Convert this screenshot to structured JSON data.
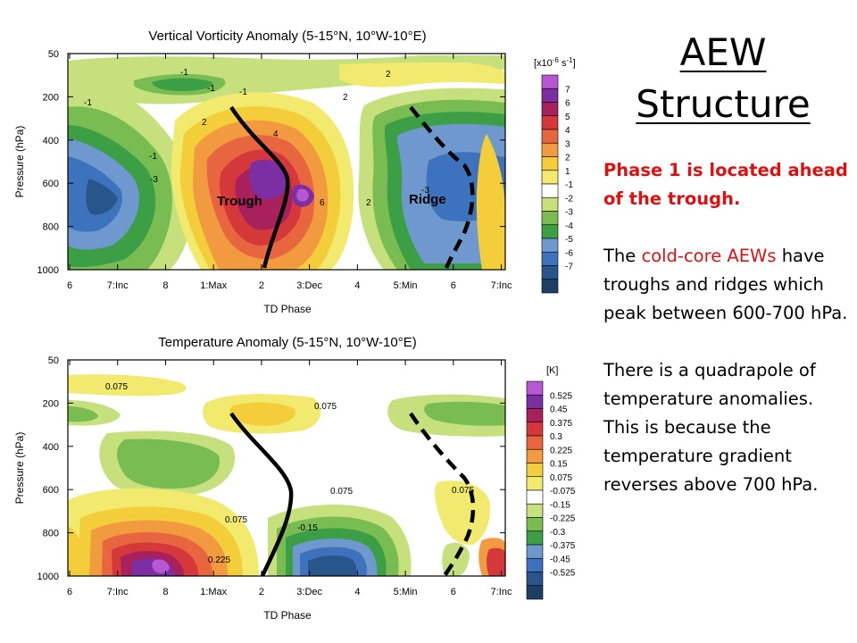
{
  "slide": {
    "title_line1": "AEW",
    "title_line2": "Structure",
    "note1": "Phase 1 is located ahead of the trough.",
    "note2_pre": "The ",
    "note2_red": "cold-core AEWs",
    "note2_post": " have troughs and ridges which peak between 600-700 hPa.",
    "note3": "There is a quadrapole of temperature anomalies. This is because the temperature gradient reverses above 700 hPa."
  },
  "colors": {
    "note_red": "#e01010",
    "line": "#000000"
  },
  "chart_data": [
    {
      "type": "heatmap",
      "title": "Vertical Vorticity Anomaly (5-15°N, 10°W-10°E)",
      "xlabel": "TD Phase",
      "ylabel": "Pressure (hPa)",
      "x_ticks": [
        "6",
        "7:Inc",
        "8",
        "1:Max",
        "2",
        "3:Dec",
        "4",
        "5:Min",
        "6",
        "7:Inc"
      ],
      "y_ticks": [
        "50",
        "200",
        "400",
        "600",
        "800",
        "1000"
      ],
      "ylim": [
        1000,
        50
      ],
      "colorbar_unit": "[x10",
      "colorbar_unit_exp": "-6",
      "colorbar_unit_tail": " s",
      "colorbar_unit_exp2": "-1",
      "colorbar_unit_close": "]",
      "colorbar_labels": [
        "7",
        "6",
        "5",
        "4",
        "3",
        "2",
        "1",
        "-1",
        "-2",
        "-3",
        "-4",
        "-5",
        "-6",
        "-7"
      ],
      "colorbar_colors": [
        "#b757d1",
        "#7b2fa3",
        "#a8205c",
        "#d5383a",
        "#e7653f",
        "#f29a3f",
        "#f4ce3a",
        "#f1ea6e",
        "#ffffff",
        "#c5e07d",
        "#78bc52",
        "#3c9f46",
        "#6f98ce",
        "#3d72bd",
        "#28568a",
        "#1e3f63"
      ],
      "contour_labels": [
        "-1",
        "-1",
        "-1",
        "-1",
        "2",
        "2",
        "2",
        "4",
        "6",
        "-1",
        "-3",
        "2",
        "-3"
      ],
      "annotations": [
        "Trough",
        "Ridge"
      ]
    },
    {
      "type": "heatmap",
      "title": "Temperature Anomaly (5-15°N, 10°W-10°E)",
      "xlabel": "TD Phase",
      "ylabel": "Pressure (hPa)",
      "x_ticks": [
        "6",
        "7:Inc",
        "8",
        "1:Max",
        "2",
        "3:Dec",
        "4",
        "5:Min",
        "6",
        "7:Inc"
      ],
      "y_ticks": [
        "50",
        "200",
        "400",
        "600",
        "800",
        "1000"
      ],
      "ylim": [
        1000,
        50
      ],
      "colorbar_unit": "[K]",
      "colorbar_labels": [
        "0.525",
        "0.45",
        "0.375",
        "0.3",
        "0.225",
        "0.15",
        "0.075",
        "-0.075",
        "-0.15",
        "-0.225",
        "-0.3",
        "-0.375",
        "-0.45",
        "-0.525"
      ],
      "colorbar_colors": [
        "#b757d1",
        "#7b2fa3",
        "#a8205c",
        "#d5383a",
        "#e7653f",
        "#f29a3f",
        "#f4ce3a",
        "#f1ea6e",
        "#ffffff",
        "#c5e07d",
        "#78bc52",
        "#3c9f46",
        "#6f98ce",
        "#3d72bd",
        "#28568a",
        "#1e3f63"
      ],
      "contour_labels": [
        "0.075",
        "0.075",
        "0.075",
        "0.075",
        "0.075",
        "0.225",
        "-0.15"
      ]
    }
  ]
}
